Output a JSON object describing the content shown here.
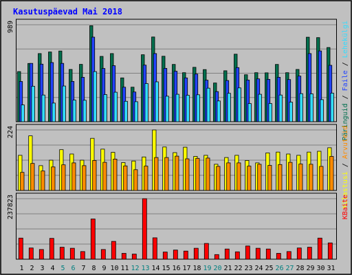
{
  "title": "Kasutuspäevad Mai 2018",
  "colors": {
    "background": "#c0c0c0",
    "frame_border": "#000000",
    "gridline": "#808080",
    "title_text": "#0000ff",
    "days_dark": "#006f4d",
    "pages_blue": "#2244ff",
    "files_cyan": "#33ddff",
    "visits_yellow": "#ffff00",
    "sites_orange": "#ff8c00",
    "kbytes_red": "#ff0000",
    "weekday_label": "#000000",
    "weekend_label": "#007f7f"
  },
  "y_axis_labels": {
    "panel1_max": "989",
    "panel2_max": "224",
    "panel3_max": "237823"
  },
  "legend": {
    "panel1": [
      {
        "text": "Päringuid",
        "color": "#006f4d"
      },
      {
        "text": "Faile",
        "color": "#2244ff"
      },
      {
        "text": "Lehekülgi",
        "color": "#33ddff"
      }
    ],
    "panel2": [
      {
        "text": "Külastusi",
        "color": "#ffff00"
      },
      {
        "text": "Arvuteid",
        "color": "#ff8c00"
      }
    ],
    "panel3": [
      {
        "text": "KBaite",
        "color": "#ff0000"
      }
    ]
  },
  "chart_data": {
    "type": "bar",
    "title": "Kasutuspäevad Mai 2018",
    "categories": [
      "1",
      "2",
      "3",
      "4",
      "5",
      "6",
      "7",
      "8",
      "9",
      "10",
      "11",
      "12",
      "13",
      "14",
      "15",
      "16",
      "17",
      "18",
      "19",
      "20",
      "21",
      "22",
      "23",
      "24",
      "25",
      "26",
      "27",
      "28",
      "29",
      "30",
      "31"
    ],
    "weekend_days": [
      "5",
      "6",
      "12",
      "13",
      "19",
      "20",
      "26",
      "27"
    ],
    "panels": [
      {
        "ylim": [
          0,
          989
        ],
        "series": [
          {
            "name": "Päringuid",
            "values": [
              511,
              594,
              695,
              711,
              721,
              533,
              585,
              979,
              666,
              695,
              447,
              352,
              683,
              864,
              668,
              584,
              500,
              555,
              532,
              395,
              520,
              689,
              479,
              500,
              499,
              584,
              500,
              533,
              862,
              858,
              757
            ]
          },
          {
            "name": "Faile",
            "values": [
              410,
              595,
              587,
              603,
              595,
              411,
              453,
              863,
              543,
              572,
              352,
              303,
              577,
              695,
              544,
              515,
              447,
              486,
              424,
              307,
              420,
              552,
              425,
              437,
              432,
              453,
              430,
              466,
              695,
              722,
              575
            ]
          },
          {
            "name": "Lehekülgi",
            "values": [
              171,
              362,
              272,
              190,
              364,
              220,
              219,
              511,
              277,
              301,
              208,
              204,
              389,
              407,
              260,
              280,
              270,
              275,
              342,
              212,
              290,
              345,
              185,
              280,
              186,
              272,
              200,
              286,
              284,
              225,
              292
            ]
          }
        ]
      },
      {
        "ylim": [
          0,
          224
        ],
        "series": [
          {
            "name": "Külastusi",
            "values": [
              130,
              202,
              92,
              112,
              151,
              135,
              112,
              193,
              153,
              141,
              103,
              109,
              124,
              224,
              161,
              140,
              160,
              126,
              130,
              97,
              122,
              130,
              111,
              102,
              139,
              142,
              135,
              130,
              142,
              145,
              158
            ]
          },
          {
            "name": "Arvuteid",
            "values": [
              67,
              100,
              72,
              87,
              95,
              102,
              92,
              111,
              104,
              116,
              91,
              77,
              90,
              122,
              122,
              127,
              117,
              119,
              120,
              89,
              102,
              102,
              90,
              97,
              93,
              96,
              104,
              98,
              97,
              89,
              126
            ]
          }
        ]
      },
      {
        "ylim": [
          0,
          237823
        ],
        "series": [
          {
            "name": "KBaite",
            "values": [
              83000,
              44000,
              38000,
              82000,
              47000,
              43000,
              30000,
              158000,
              38000,
              70000,
              23000,
              20000,
              237823,
              84000,
              28000,
              36000,
              32000,
              43000,
              62000,
              18000,
              40000,
              29000,
              52000,
              43000,
              40000,
              23000,
              30000,
              44000,
              47000,
              83000,
              64000
            ]
          }
        ]
      }
    ]
  }
}
